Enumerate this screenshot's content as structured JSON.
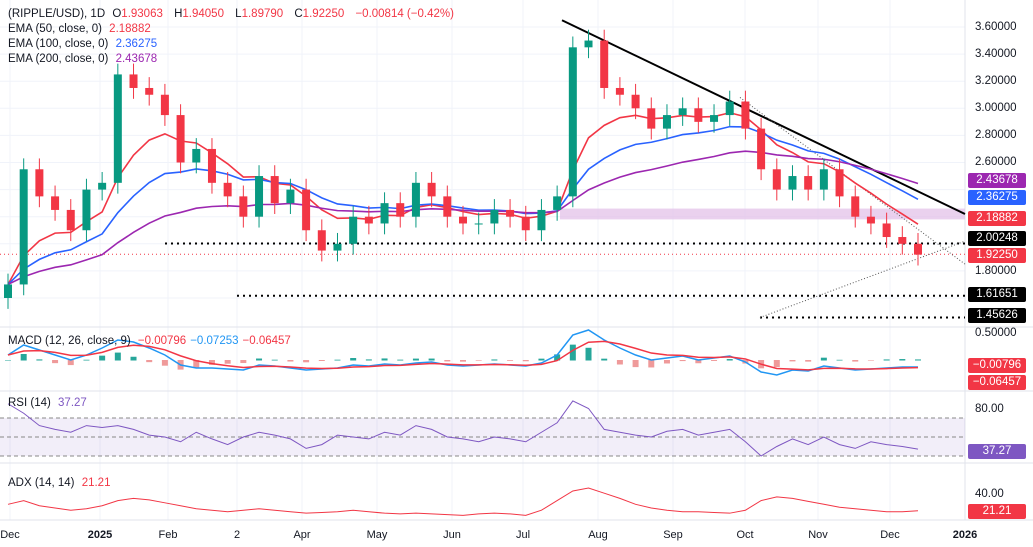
{
  "header": {
    "symbol": "(RIPPLE/USD), 1D",
    "o_label": "O",
    "o": "1.93063",
    "h_label": "H",
    "h": "1.94050",
    "l_label": "L",
    "l": "1.89790",
    "c_label": "C",
    "c": "1.92250",
    "change": "−0.00814 (−0.42%)"
  },
  "ema": [
    {
      "label": "EMA (50, close, 0)",
      "value": "2.18882",
      "color": "#f23645"
    },
    {
      "label": "EMA (100, close, 0)",
      "value": "2.36275",
      "color": "#2962ff"
    },
    {
      "label": "EMA (200, close, 0)",
      "value": "2.43678",
      "color": "#9c27b0"
    }
  ],
  "macd": {
    "label": "MACD (12, 26, close, 9)",
    "hist": "−0.00796",
    "macd": "−0.07253",
    "signal": "−0.06457",
    "tag1": "−0.00796",
    "tag2": "−0.06457"
  },
  "rsi": {
    "label": "RSI (14)",
    "value": "37.27",
    "axis": "80.00",
    "tag": "37.27"
  },
  "adx": {
    "label": "ADX (14, 14)",
    "value": "21.21",
    "axis": "40.00",
    "tag": "21.21"
  },
  "price_axis": [
    "3.60000",
    "3.40000",
    "3.20000",
    "3.00000",
    "2.80000",
    "2.60000",
    "1.80000",
    "0.50000"
  ],
  "price_tags": {
    "ema200": "2.43678",
    "ema100": "2.36275",
    "ema50": "2.18882",
    "support1": "2.00248",
    "last": "1.92250",
    "support2": "1.61651",
    "support3": "1.45626"
  },
  "chart_data": {
    "type": "candlestick",
    "title": "(RIPPLE/USD), 1D",
    "x_ticks": [
      "Dec",
      "2025",
      "Feb",
      "2",
      "Apr",
      "May",
      "Jun",
      "Jul",
      "Aug",
      "Sep",
      "Oct",
      "Nov",
      "Dec",
      "2026"
    ],
    "ylim": [
      1.42,
      3.8
    ],
    "closes": [
      1.7,
      2.55,
      2.35,
      2.25,
      2.1,
      2.4,
      2.45,
      3.25,
      3.15,
      3.1,
      2.95,
      2.6,
      2.7,
      2.45,
      2.35,
      2.2,
      2.5,
      2.3,
      2.4,
      2.1,
      1.95,
      2.0,
      2.2,
      2.15,
      2.3,
      2.2,
      2.45,
      2.35,
      2.2,
      2.15,
      2.15,
      2.25,
      2.2,
      2.1,
      2.25,
      2.35,
      3.45,
      3.5,
      3.15,
      3.1,
      3.0,
      2.85,
      2.95,
      3.0,
      2.9,
      2.95,
      3.05,
      2.85,
      2.55,
      2.4,
      2.5,
      2.4,
      2.55,
      2.35,
      2.2,
      2.15,
      2.05,
      2.0,
      1.92
    ],
    "levels": {
      "support1": 2.00248,
      "support2": 1.61651,
      "support3": 1.45626,
      "last": 1.9225,
      "zone": [
        2.18,
        2.26
      ]
    },
    "trendline": {
      "from": 3.65,
      "to": 2.22
    },
    "macd": [
      0.05,
      0.15,
      0.1,
      0.05,
      0.0,
      0.05,
      0.12,
      0.2,
      0.18,
      0.12,
      0.05,
      -0.05,
      -0.08,
      -0.08,
      -0.09,
      -0.1,
      -0.05,
      -0.06,
      -0.08,
      -0.1,
      -0.09,
      -0.08,
      -0.05,
      -0.06,
      -0.04,
      -0.05,
      -0.03,
      -0.02,
      -0.05,
      -0.06,
      -0.05,
      -0.04,
      -0.05,
      -0.06,
      -0.03,
      0.05,
      0.25,
      0.3,
      0.2,
      0.12,
      0.05,
      0.0,
      0.02,
      0.04,
      0.0,
      0.02,
      0.04,
      -0.02,
      -0.12,
      -0.15,
      -0.1,
      -0.11,
      -0.06,
      -0.08,
      -0.1,
      -0.09,
      -0.08,
      -0.07,
      -0.07
    ],
    "rsi": [
      85,
      75,
      62,
      58,
      55,
      62,
      60,
      62,
      58,
      52,
      50,
      45,
      55,
      48,
      42,
      50,
      55,
      52,
      48,
      38,
      42,
      52,
      50,
      48,
      55,
      52,
      62,
      58,
      50,
      48,
      45,
      50,
      48,
      45,
      55,
      65,
      88,
      80,
      58,
      55,
      52,
      50,
      56,
      58,
      52,
      55,
      58,
      45,
      30,
      40,
      48,
      42,
      50,
      42,
      38,
      45,
      42,
      40,
      37.27
    ],
    "adx": [
      30,
      35,
      28,
      25,
      22,
      24,
      28,
      35,
      38,
      36,
      32,
      28,
      24,
      22,
      20,
      22,
      24,
      22,
      20,
      18,
      19,
      20,
      22,
      20,
      18,
      17,
      18,
      17,
      16,
      15,
      17,
      18,
      17,
      15,
      22,
      35,
      48,
      52,
      45,
      38,
      30,
      25,
      22,
      20,
      20,
      19,
      18,
      22,
      35,
      40,
      38,
      34,
      30,
      26,
      24,
      22,
      20,
      20,
      21.21
    ]
  }
}
